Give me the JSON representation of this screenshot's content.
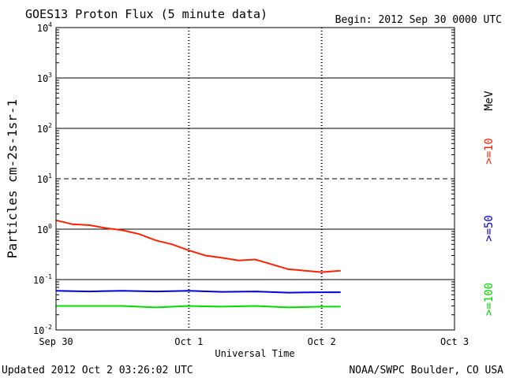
{
  "header": {
    "title": "GOES13 Proton Flux (5 minute data)",
    "begin": "Begin: 2012 Sep 30 0000 UTC"
  },
  "footer": {
    "updated": "Updated 2012 Oct  2 03:26:02 UTC",
    "source": "NOAA/SWPC Boulder, CO USA"
  },
  "chart_data": {
    "type": "line",
    "title": "GOES13 Proton Flux (5 minute data)",
    "xlabel": "Universal Time",
    "ylabel": "Particles cm-2s-1sr-1",
    "y_scale": "log",
    "ylim": [
      0.01,
      10000
    ],
    "y_ticks": [
      {
        "base": "10",
        "exp": "4",
        "value": 10000
      },
      {
        "base": "10",
        "exp": "3",
        "value": 1000
      },
      {
        "base": "10",
        "exp": "2",
        "value": 100
      },
      {
        "base": "10",
        "exp": "1",
        "value": 10
      },
      {
        "base": "10",
        "exp": "0",
        "value": 1
      },
      {
        "base": "10",
        "exp": "-1",
        "value": 0.1
      },
      {
        "base": "10",
        "exp": "-2",
        "value": 0.01
      }
    ],
    "xlim": [
      "2012-09-30 00:00",
      "2012-10-03 00:00"
    ],
    "x_ticks": [
      {
        "label": "Sep 30",
        "value": "2012-09-30 00:00"
      },
      {
        "label": "Oct 1",
        "value": "2012-10-01 00:00"
      },
      {
        "label": "Oct 2",
        "value": "2012-10-02 00:00"
      },
      {
        "label": "Oct 3",
        "value": "2012-10-03 00:00"
      }
    ],
    "threshold_lines": [
      {
        "value": 10,
        "style": "dashed"
      }
    ],
    "grid": true,
    "energy_unit_label": "MeV",
    "series": [
      {
        "name": ">=10",
        "color": "#ff2200",
        "x": [
          "2012-09-30 00:00",
          "2012-09-30 03:00",
          "2012-09-30 06:00",
          "2012-09-30 09:00",
          "2012-09-30 12:00",
          "2012-09-30 15:00",
          "2012-09-30 18:00",
          "2012-09-30 21:00",
          "2012-10-01 00:00",
          "2012-10-01 03:00",
          "2012-10-01 06:00",
          "2012-10-01 09:00",
          "2012-10-01 12:00",
          "2012-10-01 15:00",
          "2012-10-01 18:00",
          "2012-10-01 21:00",
          "2012-10-02 00:00",
          "2012-10-02 03:26"
        ],
        "values": [
          1.5,
          1.25,
          1.2,
          1.05,
          0.95,
          0.8,
          0.6,
          0.5,
          0.38,
          0.3,
          0.27,
          0.24,
          0.25,
          0.2,
          0.16,
          0.15,
          0.14,
          0.15
        ]
      },
      {
        "name": ">=50",
        "color": "#0000dd",
        "x": [
          "2012-09-30 00:00",
          "2012-09-30 06:00",
          "2012-09-30 12:00",
          "2012-09-30 18:00",
          "2012-10-01 00:00",
          "2012-10-01 06:00",
          "2012-10-01 12:00",
          "2012-10-01 18:00",
          "2012-10-02 00:00",
          "2012-10-02 03:26"
        ],
        "values": [
          0.06,
          0.058,
          0.06,
          0.058,
          0.06,
          0.057,
          0.058,
          0.055,
          0.056,
          0.056
        ]
      },
      {
        "name": ">=100",
        "color": "#00dd00",
        "x": [
          "2012-09-30 00:00",
          "2012-09-30 06:00",
          "2012-09-30 12:00",
          "2012-09-30 18:00",
          "2012-10-01 00:00",
          "2012-10-01 06:00",
          "2012-10-01 12:00",
          "2012-10-01 18:00",
          "2012-10-02 00:00",
          "2012-10-02 03:26"
        ],
        "values": [
          0.03,
          0.03,
          0.03,
          0.028,
          0.03,
          0.029,
          0.03,
          0.028,
          0.029,
          0.029
        ]
      }
    ]
  }
}
